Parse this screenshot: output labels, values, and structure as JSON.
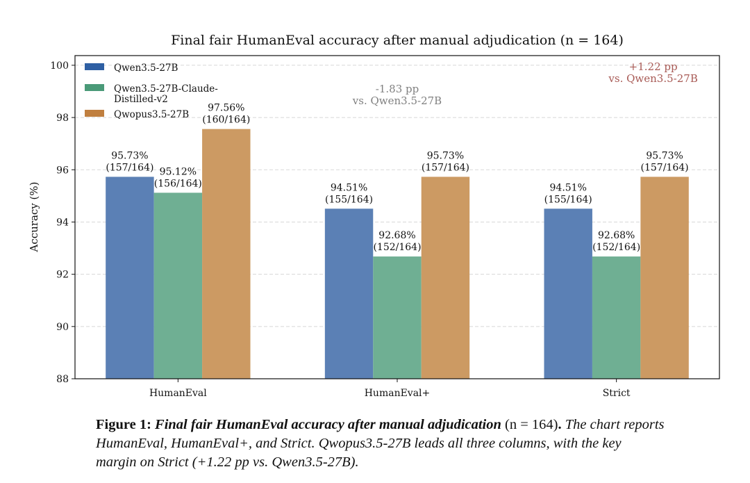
{
  "chart_data": {
    "type": "bar",
    "title": "Final fair HumanEval accuracy after manual adjudication (n = 164)",
    "xlabel": "",
    "ylabel": "Accuracy (%)",
    "ylim": [
      88,
      100.37
    ],
    "yticks": [
      88,
      90,
      92,
      94,
      96,
      98,
      100
    ],
    "grid": "y dashed",
    "legend": "top-left",
    "categories": [
      "HumanEval",
      "HumanEval+",
      "Strict"
    ],
    "series": [
      {
        "name": "Qwen3.5-27B",
        "color": "#5b80b5",
        "legend_color": "#2e5fa3",
        "values": [
          95.73,
          94.51,
          94.51
        ],
        "labels": [
          [
            "95.73%",
            "(157/164)"
          ],
          [
            "94.51%",
            "(155/164)"
          ],
          [
            "94.51%",
            "(155/164)"
          ]
        ]
      },
      {
        "name": "Qwen3.5-27B-Claude-Distilled-v2",
        "legend_lines": [
          "Qwen3.5-27B-Claude-",
          "Distilled-v2"
        ],
        "color": "#6faf93",
        "legend_color": "#4a9a78",
        "values": [
          95.12,
          92.68,
          92.68
        ],
        "labels": [
          [
            "95.12%",
            "(156/164)"
          ],
          [
            "92.68%",
            "(152/164)"
          ],
          [
            "92.68%",
            "(152/164)"
          ]
        ]
      },
      {
        "name": "Qwopus3.5-27B",
        "color": "#cc9a63",
        "legend_color": "#c07f3f",
        "values": [
          97.56,
          95.73,
          95.73
        ],
        "labels": [
          [
            "97.56%",
            "(160/164)"
          ],
          [
            "95.73%",
            "(157/164)"
          ],
          [
            "95.73%",
            "(157/164)"
          ]
        ]
      }
    ],
    "annotations": [
      {
        "lines": [
          "-1.83 pp",
          "vs. Qwen3.5-27B"
        ],
        "category": "HumanEval+",
        "color": "#808080"
      },
      {
        "lines": [
          "+1.22 pp",
          "vs. Qwen3.5-27B"
        ],
        "category": "Strict",
        "color": "#a85a55"
      }
    ]
  },
  "caption": {
    "label": "Figure 1:",
    "title": "Final fair HumanEval accuracy after manual adjudication",
    "paren": "(n = 164)",
    "text": "The chart reports HumanEval, HumanEval+, and Strict. Qwopus3.5-27B leads all three columns, with the key margin on Strict (+1.22 pp vs. Qwen3.5-27B)."
  }
}
